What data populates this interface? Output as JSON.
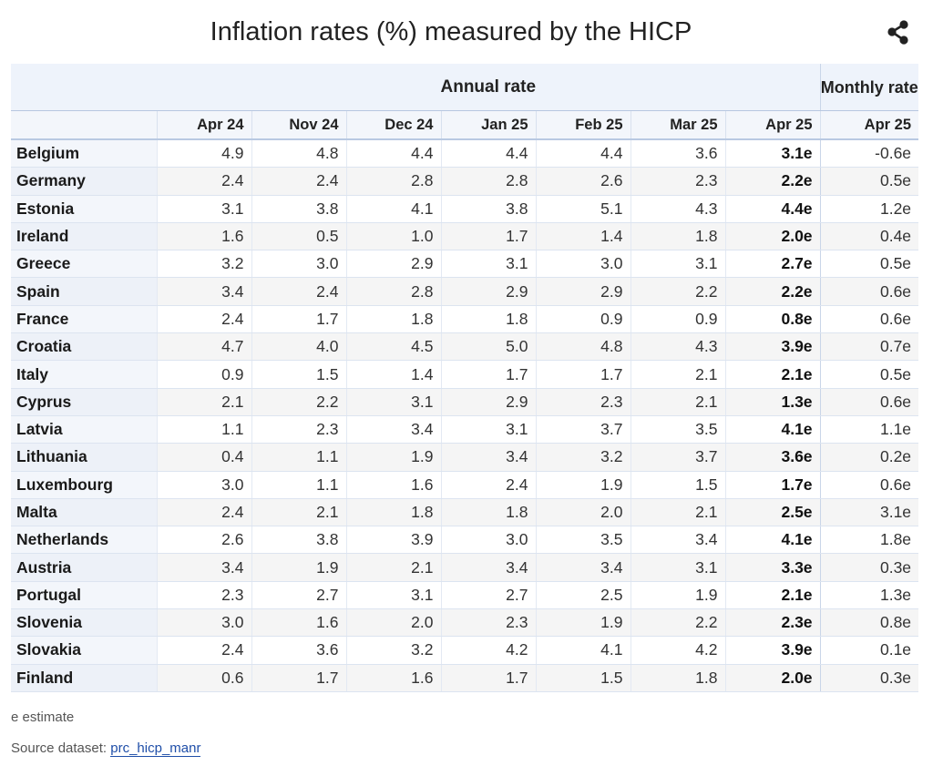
{
  "title": "Inflation rates (%) measured by the HICP",
  "share_icon": "share-icon",
  "header": {
    "annual_rate": "Annual rate",
    "monthly_rate": "Monthly rate",
    "months": [
      "Apr 24",
      "Nov 24",
      "Dec 24",
      "Jan 25",
      "Feb 25",
      "Mar 25",
      "Apr 25",
      "Apr 25"
    ]
  },
  "rows": [
    {
      "country": "Belgium",
      "values": [
        "4.9",
        "4.8",
        "4.4",
        "4.4",
        "4.4",
        "3.6",
        "3.1e",
        "-0.6e"
      ]
    },
    {
      "country": "Germany",
      "values": [
        "2.4",
        "2.4",
        "2.8",
        "2.8",
        "2.6",
        "2.3",
        "2.2e",
        "0.5e"
      ]
    },
    {
      "country": "Estonia",
      "values": [
        "3.1",
        "3.8",
        "4.1",
        "3.8",
        "5.1",
        "4.3",
        "4.4e",
        "1.2e"
      ]
    },
    {
      "country": "Ireland",
      "values": [
        "1.6",
        "0.5",
        "1.0",
        "1.7",
        "1.4",
        "1.8",
        "2.0e",
        "0.4e"
      ]
    },
    {
      "country": "Greece",
      "values": [
        "3.2",
        "3.0",
        "2.9",
        "3.1",
        "3.0",
        "3.1",
        "2.7e",
        "0.5e"
      ]
    },
    {
      "country": "Spain",
      "values": [
        "3.4",
        "2.4",
        "2.8",
        "2.9",
        "2.9",
        "2.2",
        "2.2e",
        "0.6e"
      ]
    },
    {
      "country": "France",
      "values": [
        "2.4",
        "1.7",
        "1.8",
        "1.8",
        "0.9",
        "0.9",
        "0.8e",
        "0.6e"
      ]
    },
    {
      "country": "Croatia",
      "values": [
        "4.7",
        "4.0",
        "4.5",
        "5.0",
        "4.8",
        "4.3",
        "3.9e",
        "0.7e"
      ]
    },
    {
      "country": "Italy",
      "values": [
        "0.9",
        "1.5",
        "1.4",
        "1.7",
        "1.7",
        "2.1",
        "2.1e",
        "0.5e"
      ]
    },
    {
      "country": "Cyprus",
      "values": [
        "2.1",
        "2.2",
        "3.1",
        "2.9",
        "2.3",
        "2.1",
        "1.3e",
        "0.6e"
      ]
    },
    {
      "country": "Latvia",
      "values": [
        "1.1",
        "2.3",
        "3.4",
        "3.1",
        "3.7",
        "3.5",
        "4.1e",
        "1.1e"
      ]
    },
    {
      "country": "Lithuania",
      "values": [
        "0.4",
        "1.1",
        "1.9",
        "3.4",
        "3.2",
        "3.7",
        "3.6e",
        "0.2e"
      ]
    },
    {
      "country": "Luxembourg",
      "values": [
        "3.0",
        "1.1",
        "1.6",
        "2.4",
        "1.9",
        "1.5",
        "1.7e",
        "0.6e"
      ]
    },
    {
      "country": "Malta",
      "values": [
        "2.4",
        "2.1",
        "1.8",
        "1.8",
        "2.0",
        "2.1",
        "2.5e",
        "3.1e"
      ]
    },
    {
      "country": "Netherlands",
      "values": [
        "2.6",
        "3.8",
        "3.9",
        "3.0",
        "3.5",
        "3.4",
        "4.1e",
        "1.8e"
      ]
    },
    {
      "country": "Austria",
      "values": [
        "3.4",
        "1.9",
        "2.1",
        "3.4",
        "3.4",
        "3.1",
        "3.3e",
        "0.3e"
      ]
    },
    {
      "country": "Portugal",
      "values": [
        "2.3",
        "2.7",
        "3.1",
        "2.7",
        "2.5",
        "1.9",
        "2.1e",
        "1.3e"
      ]
    },
    {
      "country": "Slovenia",
      "values": [
        "3.0",
        "1.6",
        "2.0",
        "2.3",
        "1.9",
        "2.2",
        "2.3e",
        "0.8e"
      ]
    },
    {
      "country": "Slovakia",
      "values": [
        "2.4",
        "3.6",
        "3.2",
        "4.2",
        "4.1",
        "4.2",
        "3.9e",
        "0.1e"
      ]
    },
    {
      "country": "Finland",
      "values": [
        "0.6",
        "1.7",
        "1.6",
        "1.7",
        "1.5",
        "1.8",
        "2.0e",
        "0.3e"
      ]
    }
  ],
  "footnote": "e estimate",
  "source": {
    "label": "Source dataset:",
    "link_text": "prc_hicp_manr"
  },
  "colors": {
    "header_bg": "#eef3fb",
    "link": "#1f4ea8",
    "stripe": "#f5f5f5"
  }
}
